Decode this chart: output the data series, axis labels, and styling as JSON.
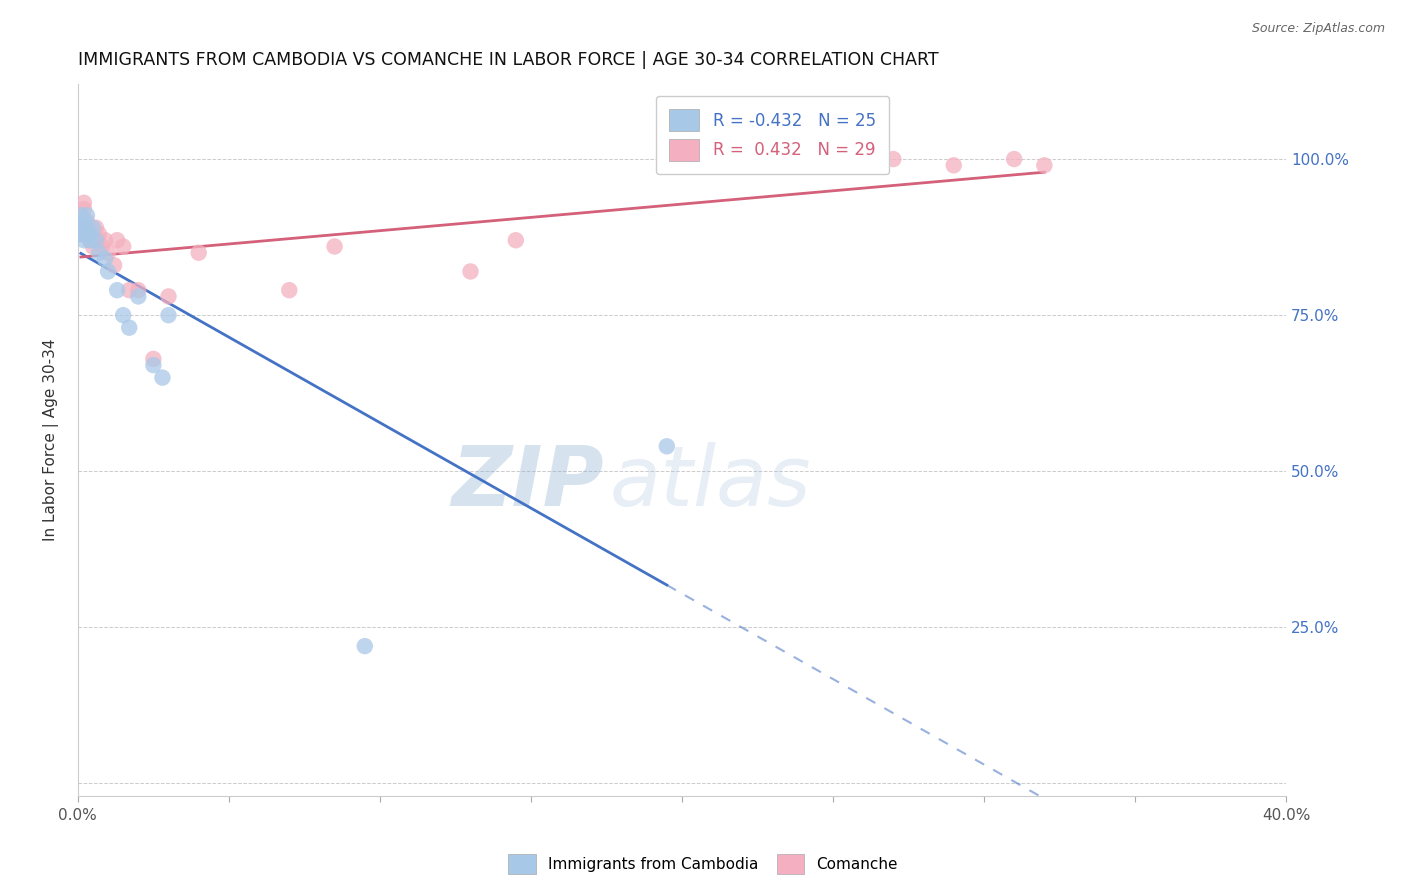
{
  "title": "IMMIGRANTS FROM CAMBODIA VS COMANCHE IN LABOR FORCE | AGE 30-34 CORRELATION CHART",
  "source": "Source: ZipAtlas.com",
  "ylabel": "In Labor Force | Age 30-34",
  "xlim": [
    0.0,
    0.4
  ],
  "ylim": [
    0.0,
    1.1
  ],
  "ytick_positions": [
    0.0,
    0.25,
    0.5,
    0.75,
    1.0
  ],
  "ytick_labels": [
    "",
    "25.0%",
    "50.0%",
    "75.0%",
    "100.0%"
  ],
  "cambodia_x": [
    0.001,
    0.001,
    0.001,
    0.002,
    0.002,
    0.002,
    0.003,
    0.003,
    0.003,
    0.004,
    0.004,
    0.005,
    0.006,
    0.007,
    0.009,
    0.01,
    0.013,
    0.015,
    0.017,
    0.02,
    0.025,
    0.028,
    0.03,
    0.195,
    0.095
  ],
  "cambodia_y": [
    0.91,
    0.89,
    0.88,
    0.9,
    0.89,
    0.87,
    0.91,
    0.89,
    0.88,
    0.88,
    0.87,
    0.89,
    0.87,
    0.85,
    0.84,
    0.82,
    0.79,
    0.75,
    0.73,
    0.78,
    0.67,
    0.65,
    0.75,
    0.54,
    0.22
  ],
  "comanche_x": [
    0.001,
    0.002,
    0.002,
    0.003,
    0.003,
    0.004,
    0.005,
    0.006,
    0.006,
    0.007,
    0.008,
    0.009,
    0.01,
    0.012,
    0.013,
    0.015,
    0.017,
    0.02,
    0.025,
    0.03,
    0.04,
    0.07,
    0.085,
    0.13,
    0.145,
    0.27,
    0.29,
    0.31,
    0.32
  ],
  "comanche_y": [
    0.88,
    0.92,
    0.93,
    0.9,
    0.88,
    0.87,
    0.86,
    0.87,
    0.89,
    0.88,
    0.86,
    0.87,
    0.85,
    0.83,
    0.87,
    0.86,
    0.79,
    0.79,
    0.68,
    0.78,
    0.85,
    0.79,
    0.86,
    0.82,
    0.87,
    1.0,
    0.99,
    1.0,
    0.99
  ],
  "cambodia_color": "#a8c8e8",
  "comanche_color": "#f4b0c0",
  "cambodia_line_color": "#4472c4",
  "comanche_line_color": "#d4607a",
  "R_cambodia": -0.432,
  "N_cambodia": 25,
  "R_comanche": 0.432,
  "N_comanche": 29,
  "legend_label_cambodia": "Immigrants from Cambodia",
  "legend_label_comanche": "Comanche",
  "watermark_zip": "ZIP",
  "watermark_atlas": "atlas",
  "background_color": "#ffffff",
  "grid_color": "#cccccc"
}
